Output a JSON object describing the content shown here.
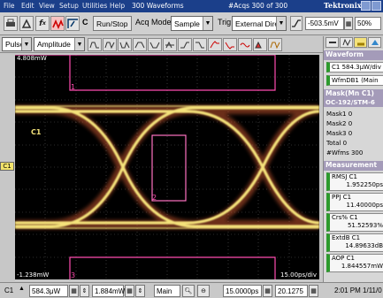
{
  "menu": {
    "items": [
      "File",
      "Edit",
      "View",
      "Setup",
      "Utilities",
      "Help"
    ],
    "waveforms": "300 Waveforms",
    "acqs": "#Acqs  300 of 300",
    "brand": "Tektronix"
  },
  "toolbar": {
    "c_label": "C",
    "run_stop": "Run/Stop",
    "acq_mode_label": "Acq Mode",
    "acq_mode_value": "Sample",
    "trig_label": "Trig",
    "trig_value": "External Direct",
    "trig_level": "-503.5mV",
    "zoom": "50%"
  },
  "toolbar2": {
    "source": "Pulse",
    "measure_type": "Amplitude"
  },
  "display": {
    "top_left": "4.808mW",
    "bottom_left": "-1.238mW",
    "bottom_right": "15.00ps/div",
    "marker_1": "1",
    "marker_2": "2",
    "marker_3": "3",
    "channel_tag": "C1",
    "left_channel": "C1"
  },
  "panel": {
    "waveform_header": "Waveform",
    "channel_row": "C1 584.3μW/div",
    "wfm_row": "WfmDB1 (Main",
    "mask_header": "Mask(Mn C1)",
    "mask_sub": "OC-192/STM-6",
    "mask_lines": [
      "Mask1  0",
      "Mask2  0",
      "Mask3  0",
      "Total   0",
      "#Wfms  300"
    ],
    "meas_header": "Measurement",
    "measurements": [
      {
        "name": "RMSJ  C1",
        "value": "1.952250ps"
      },
      {
        "name": "PPJ  C1",
        "value": "11.40000ps"
      },
      {
        "name": "Crs%  C1",
        "value": "51.52593%"
      },
      {
        "name": "ExtdB  C1",
        "value": "14.89633dB"
      },
      {
        "name": "AOP  C1",
        "value": "1.844557mW"
      }
    ]
  },
  "bottom": {
    "channel": "C1",
    "vscale": "584.3μW",
    "voffset": "1.884mW",
    "timebase_label": "Main",
    "hscale": "15.0000ps",
    "hpos": "20.1275",
    "time": "2:01 PM 1/11/0"
  },
  "colors": {
    "menubar": "#1b3f8a",
    "eye": "#f4e27a",
    "mask": "#ff4db0",
    "accent_green": "#2c9a2c",
    "panel_header": "#a49bb9"
  }
}
